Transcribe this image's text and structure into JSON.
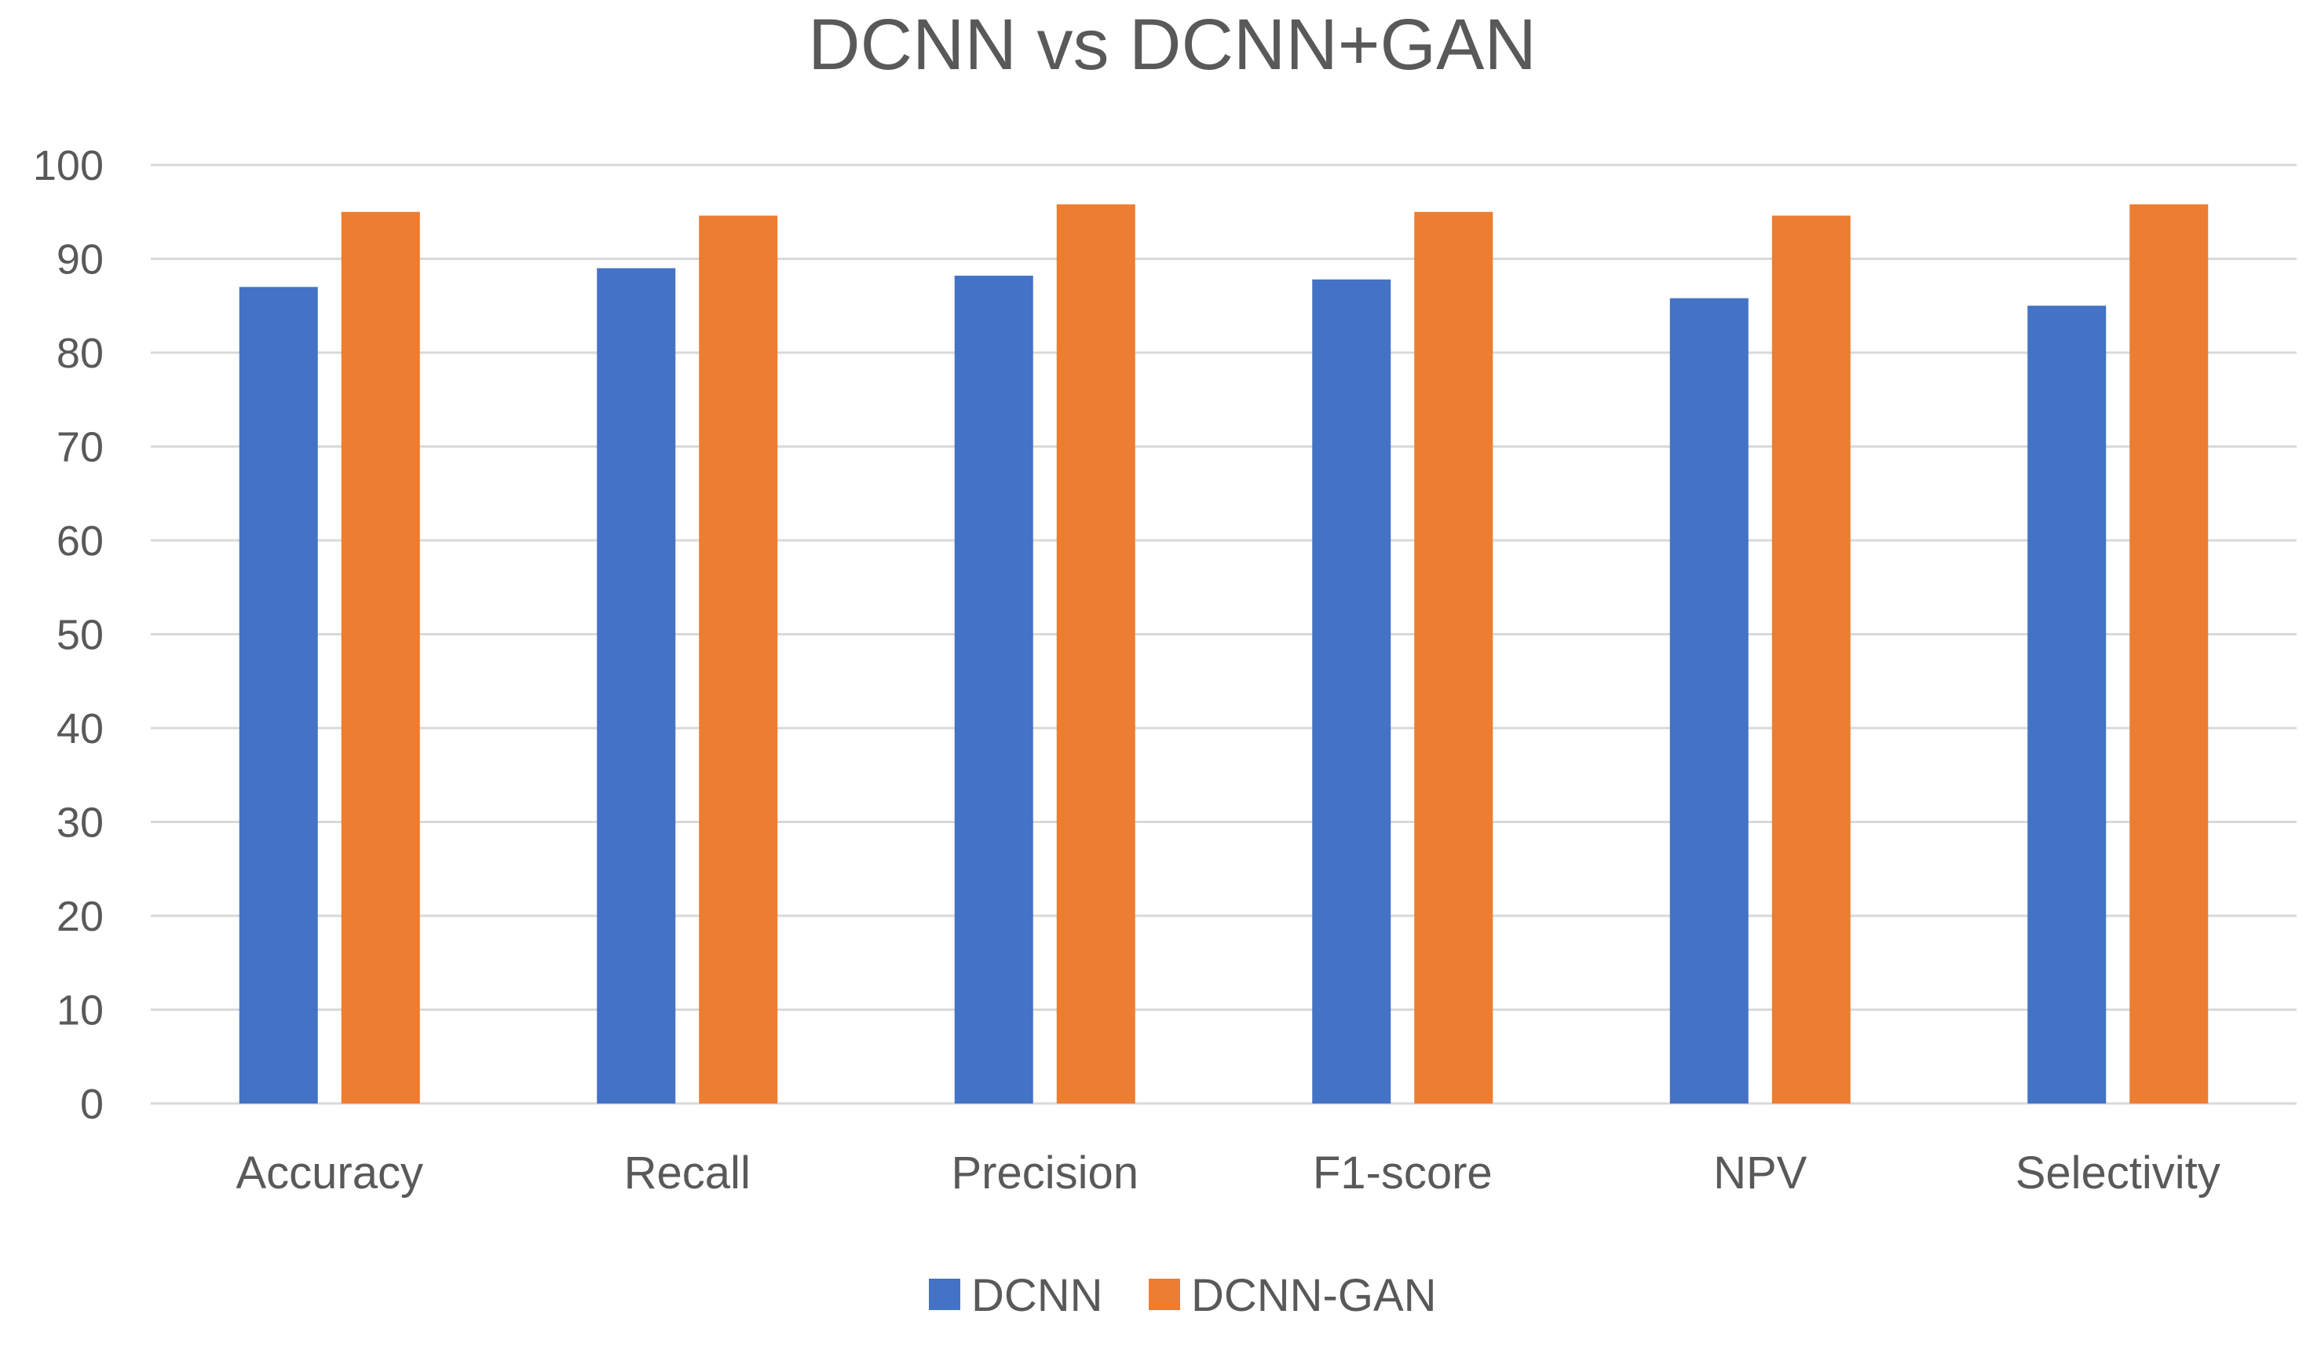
{
  "chart_data": {
    "type": "bar",
    "title": "DCNN vs DCNN+GAN",
    "xlabel": "",
    "ylabel": "",
    "categories": [
      "Accuracy",
      "Recall",
      "Precision",
      "F1-score",
      "NPV",
      "Selectivity"
    ],
    "series": [
      {
        "name": "DCNN",
        "color": "#4472C4",
        "values": [
          87,
          89,
          88.2,
          87.8,
          85.8,
          85
        ]
      },
      {
        "name": "DCNN-GAN",
        "color": "#ED7D31",
        "values": [
          95,
          94.6,
          95.8,
          95,
          94.6,
          95.8
        ]
      }
    ],
    "ylim": [
      0,
      100
    ],
    "yticks": [
      0,
      10,
      20,
      30,
      40,
      50,
      60,
      70,
      80,
      90,
      100
    ],
    "grid": true,
    "legend_position": "bottom-center"
  }
}
